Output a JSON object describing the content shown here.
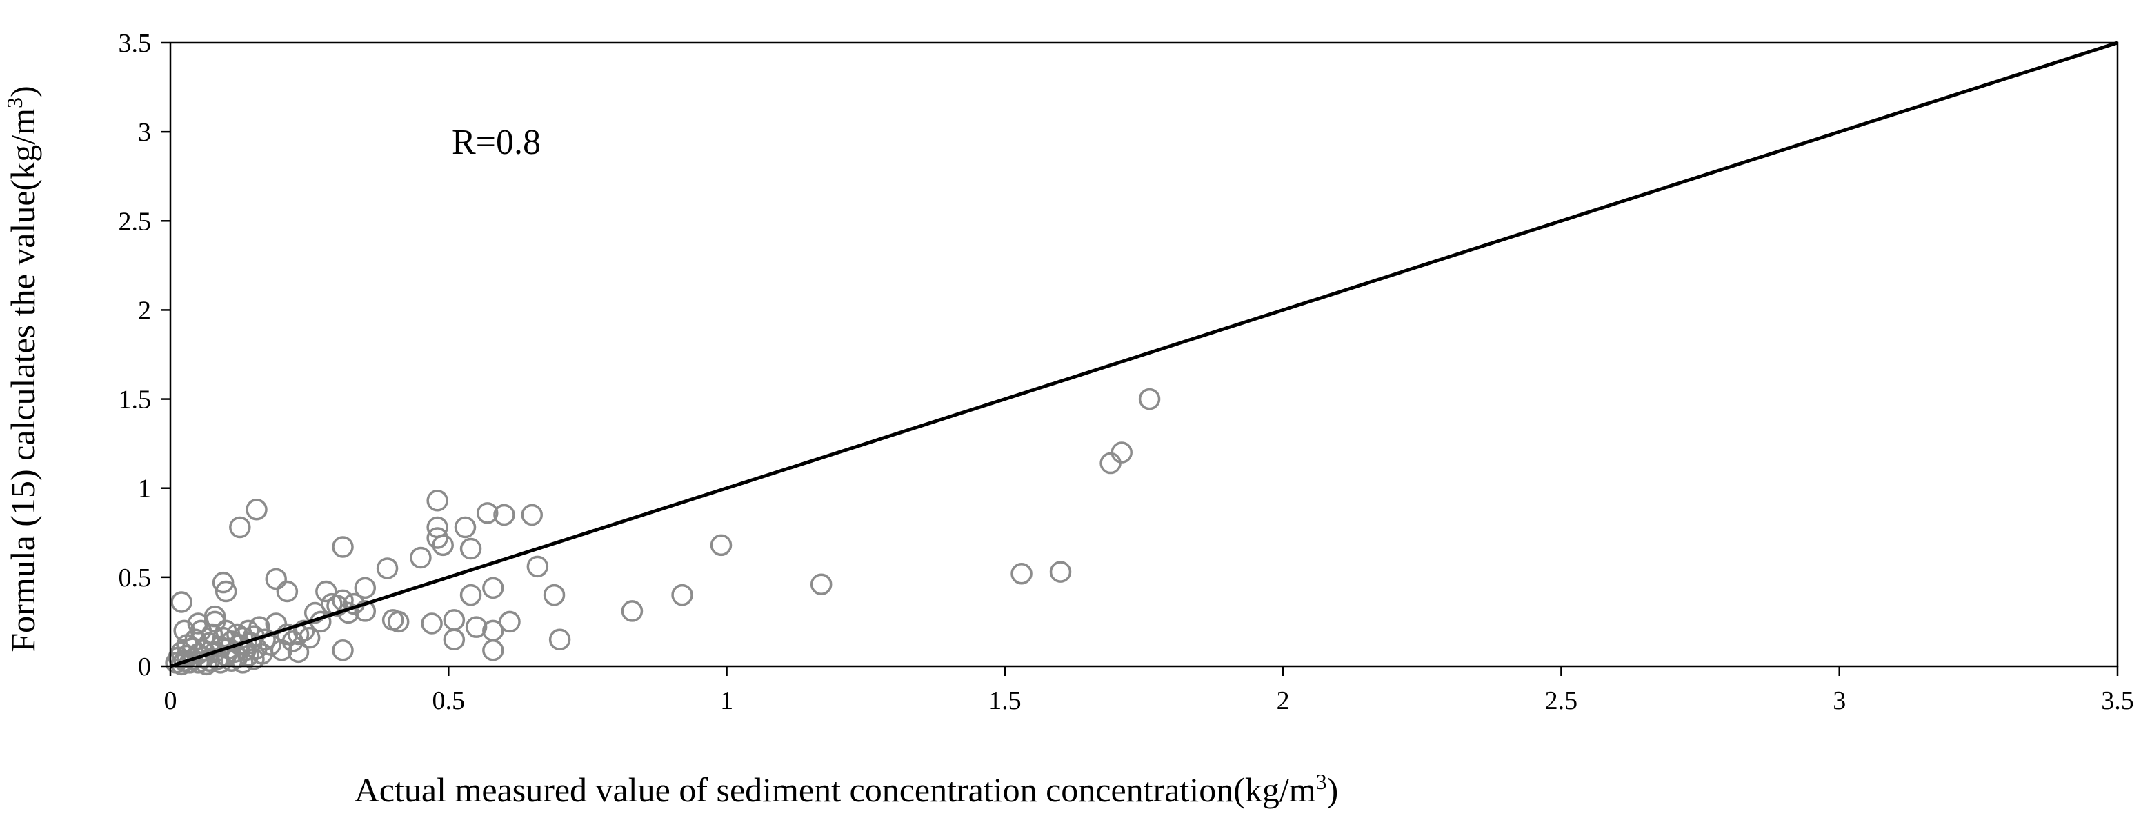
{
  "chart_data": {
    "type": "scatter",
    "title": "",
    "xlabel_text": "Actual measured value of sediment concentration concentration(kg/m",
    "xlabel_sup": "3",
    "xlabel_close": ")",
    "ylabel_text": "Formula (15) calculates the value(kg/m",
    "ylabel_sup": "3",
    "ylabel_close": ")",
    "xlim": [
      0,
      3.5
    ],
    "ylim": [
      0,
      3.5
    ],
    "x_ticks": [
      "0",
      "0.5",
      "1",
      "1.5",
      "2",
      "2.5",
      "3",
      "3.5"
    ],
    "y_ticks": [
      "0",
      "0.5",
      "1",
      "1.5",
      "2",
      "2.5",
      "3",
      "3.5"
    ],
    "grid": false,
    "legend": "none",
    "annotation": "R=0.8",
    "reference_line": {
      "from": [
        0,
        0
      ],
      "to": [
        3.5,
        3.5
      ]
    },
    "marker_color": "#8c8c8c",
    "series": [
      {
        "points": [
          [
            0.01,
            0.02
          ],
          [
            0.015,
            0.05
          ],
          [
            0.02,
            0.01
          ],
          [
            0.02,
            0.08
          ],
          [
            0.025,
            0.03
          ],
          [
            0.03,
            0.12
          ],
          [
            0.03,
            0.06
          ],
          [
            0.035,
            0.02
          ],
          [
            0.04,
            0.1
          ],
          [
            0.04,
            0.04
          ],
          [
            0.045,
            0.15
          ],
          [
            0.05,
            0.07
          ],
          [
            0.05,
            0.02
          ],
          [
            0.055,
            0.2
          ],
          [
            0.06,
            0.09
          ],
          [
            0.06,
            0.05
          ],
          [
            0.065,
            0.01
          ],
          [
            0.07,
            0.13
          ],
          [
            0.07,
            0.03
          ],
          [
            0.075,
            0.18
          ],
          [
            0.08,
            0.08
          ],
          [
            0.08,
            0.25
          ],
          [
            0.085,
            0.04
          ],
          [
            0.09,
            0.11
          ],
          [
            0.09,
            0.02
          ],
          [
            0.095,
            0.16
          ],
          [
            0.1,
            0.06
          ],
          [
            0.1,
            0.2
          ],
          [
            0.105,
            0.1
          ],
          [
            0.11,
            0.03
          ],
          [
            0.11,
            0.14
          ],
          [
            0.115,
            0.08
          ],
          [
            0.12,
            0.18
          ],
          [
            0.12,
            0.05
          ],
          [
            0.125,
            0.12
          ],
          [
            0.13,
            0.02
          ],
          [
            0.13,
            0.16
          ],
          [
            0.135,
            0.09
          ],
          [
            0.14,
            0.2
          ],
          [
            0.14,
            0.06
          ],
          [
            0.145,
            0.13
          ],
          [
            0.15,
            0.04
          ],
          [
            0.15,
            0.17
          ],
          [
            0.155,
            0.1
          ],
          [
            0.16,
            0.22
          ],
          [
            0.165,
            0.07
          ],
          [
            0.17,
            0.15
          ],
          [
            0.18,
            0.12
          ],
          [
            0.19,
            0.24
          ],
          [
            0.2,
            0.09
          ],
          [
            0.21,
            0.18
          ],
          [
            0.22,
            0.14
          ],
          [
            0.23,
            0.08
          ],
          [
            0.24,
            0.2
          ],
          [
            0.25,
            0.16
          ],
          [
            0.26,
            0.3
          ],
          [
            0.27,
            0.25
          ],
          [
            0.28,
            0.42
          ],
          [
            0.29,
            0.35
          ],
          [
            0.3,
            0.34
          ],
          [
            0.31,
            0.37
          ],
          [
            0.32,
            0.3
          ],
          [
            0.33,
            0.35
          ],
          [
            0.35,
            0.31
          ],
          [
            0.02,
            0.36
          ],
          [
            0.025,
            0.2
          ],
          [
            0.05,
            0.24
          ],
          [
            0.08,
            0.28
          ],
          [
            0.095,
            0.47
          ],
          [
            0.1,
            0.42
          ],
          [
            0.125,
            0.78
          ],
          [
            0.155,
            0.88
          ],
          [
            0.19,
            0.49
          ],
          [
            0.21,
            0.42
          ],
          [
            0.23,
            0.18
          ],
          [
            0.31,
            0.67
          ],
          [
            0.31,
            0.09
          ],
          [
            0.35,
            0.44
          ],
          [
            0.39,
            0.55
          ],
          [
            0.4,
            0.26
          ],
          [
            0.41,
            0.25
          ],
          [
            0.45,
            0.61
          ],
          [
            0.47,
            0.24
          ],
          [
            0.48,
            0.93
          ],
          [
            0.48,
            0.78
          ],
          [
            0.48,
            0.72
          ],
          [
            0.49,
            0.68
          ],
          [
            0.51,
            0.15
          ],
          [
            0.51,
            0.26
          ],
          [
            0.53,
            0.78
          ],
          [
            0.54,
            0.66
          ],
          [
            0.54,
            0.4
          ],
          [
            0.55,
            0.22
          ],
          [
            0.57,
            0.86
          ],
          [
            0.58,
            0.44
          ],
          [
            0.58,
            0.2
          ],
          [
            0.58,
            0.09
          ],
          [
            0.6,
            0.85
          ],
          [
            0.61,
            0.25
          ],
          [
            0.65,
            0.85
          ],
          [
            0.66,
            0.56
          ],
          [
            0.69,
            0.4
          ],
          [
            0.7,
            0.15
          ],
          [
            0.83,
            0.31
          ],
          [
            0.92,
            0.4
          ],
          [
            0.99,
            0.68
          ],
          [
            1.17,
            0.46
          ],
          [
            1.53,
            0.52
          ],
          [
            1.6,
            0.53
          ],
          [
            1.69,
            1.14
          ],
          [
            1.71,
            1.2
          ],
          [
            1.76,
            1.5
          ]
        ]
      }
    ]
  }
}
